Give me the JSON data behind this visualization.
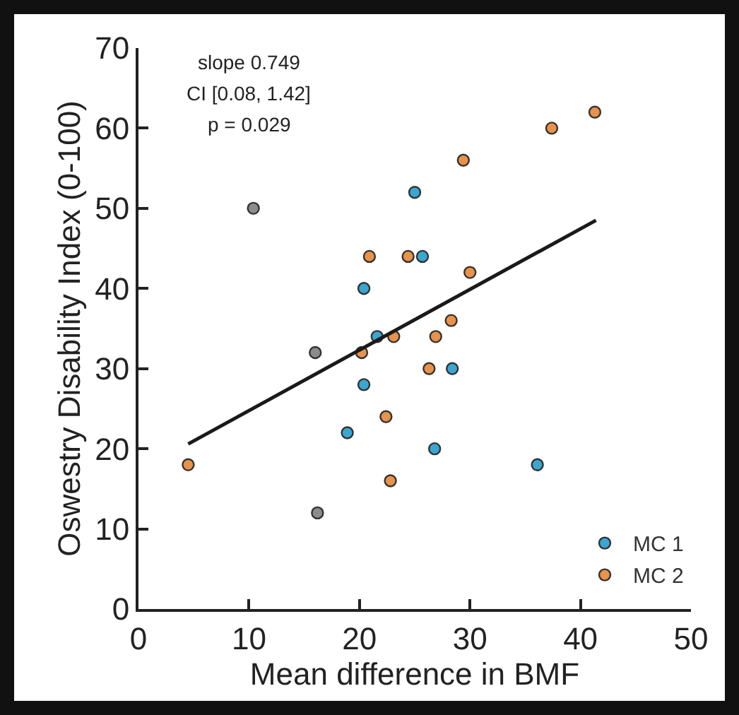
{
  "chart_data": {
    "type": "scatter",
    "xlabel": "Mean difference in BMF",
    "ylabel": "Oswestry Disability Index (0-100)",
    "annotations": [
      "slope 0.749",
      "CI [0.08, 1.42]",
      "p = 0.029"
    ],
    "series": [
      {
        "name": "MC 1",
        "color": "#3aa6d2",
        "x": [
          20.4,
          20.4,
          25.0,
          25.7,
          21.6,
          18.9,
          28.4,
          26.8,
          36.1
        ],
        "values": [
          40,
          28,
          52,
          44,
          34,
          22,
          30,
          20,
          18
        ]
      },
      {
        "name": "MC 2",
        "color": "#e8924a",
        "x": [
          20.9,
          24.4,
          29.4,
          37.4,
          41.3,
          30.0,
          28.3,
          26.9,
          23.1,
          20.2,
          22.4,
          4.5,
          22.8,
          26.3
        ],
        "values": [
          44,
          44,
          56,
          60,
          62,
          42,
          36,
          34,
          34,
          32,
          24,
          18,
          16,
          30
        ]
      },
      {
        "color": "#8c8c8c",
        "x": [
          10.4,
          16.0,
          16.2
        ],
        "values": [
          50,
          32,
          12
        ]
      },
      {
        "type": "line",
        "color": "#1a1a1a",
        "marker": "none",
        "x": [
          4.5,
          41.4
        ],
        "values": [
          20.6,
          48.5
        ]
      }
    ],
    "xlim": [
      0,
      50
    ],
    "xticks": [
      0,
      10,
      20,
      30,
      40,
      50
    ],
    "ylim": [
      0,
      70
    ],
    "yticks": [
      0,
      10,
      20,
      30,
      40,
      50,
      60,
      70
    ],
    "grid": false,
    "legend": "bottom right",
    "marker": "circle"
  }
}
